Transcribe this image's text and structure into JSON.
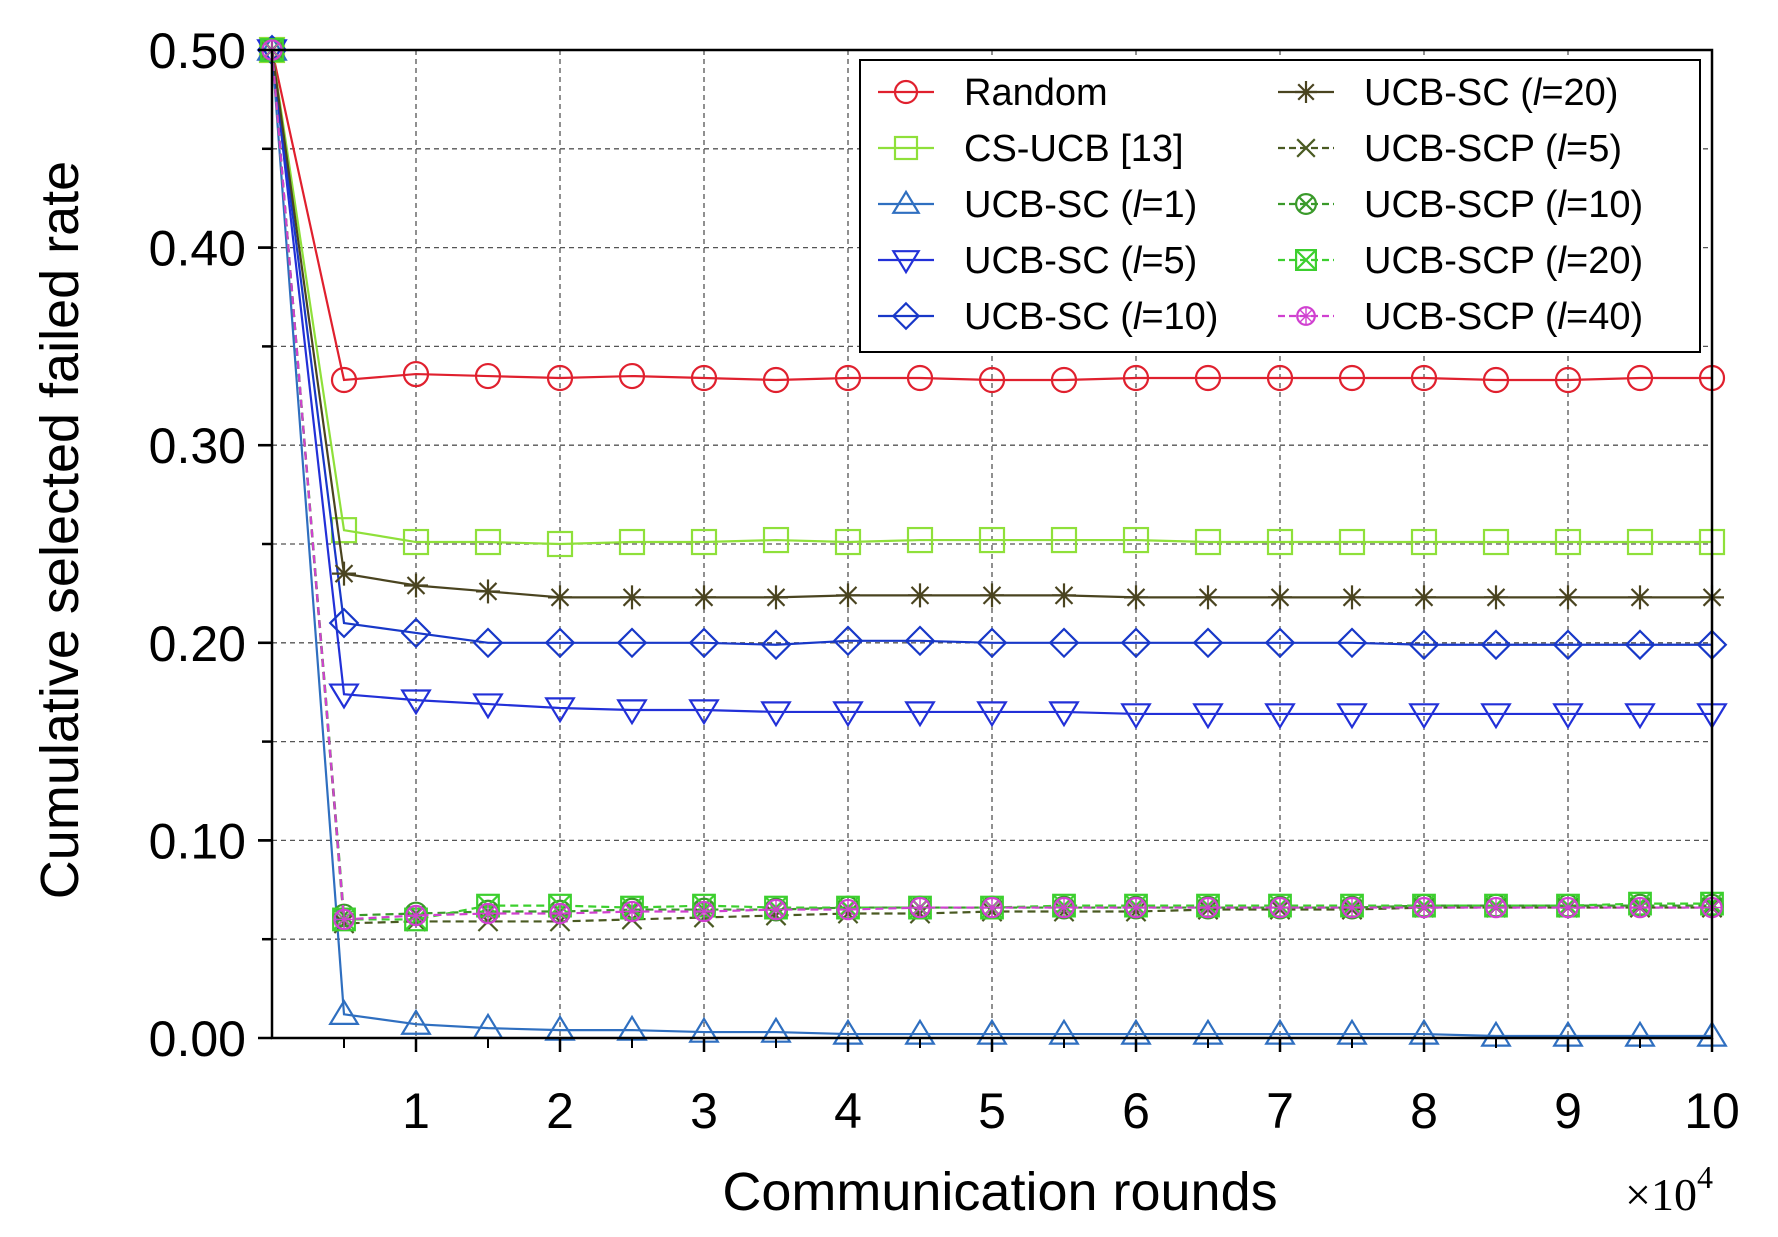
{
  "chart_data": {
    "type": "line",
    "title": "",
    "xlabel": "Communication rounds",
    "ylabel": "Cumulative selected failed rate",
    "x_multiplier_label": "×10",
    "x_multiplier_exp": "4",
    "xlim": [
      0,
      10
    ],
    "ylim": [
      0,
      0.5
    ],
    "xticks": [
      1,
      2,
      3,
      4,
      5,
      6,
      7,
      8,
      9,
      10
    ],
    "xtick_labels": [
      "1",
      "2",
      "3",
      "4",
      "5",
      "6",
      "7",
      "8",
      "9",
      "10"
    ],
    "yticks": [
      0,
      0.1,
      0.2,
      0.3,
      0.4,
      0.5
    ],
    "ytick_labels": [
      "0.00",
      "0.10",
      "0.20",
      "0.30",
      "0.40",
      "0.50"
    ],
    "grid": true,
    "legend_position": "top-right",
    "x": [
      0,
      0.5,
      1,
      1.5,
      2,
      2.5,
      3,
      3.5,
      4,
      4.5,
      5,
      5.5,
      6,
      6.5,
      7,
      7.5,
      8,
      8.5,
      9,
      9.5,
      10
    ],
    "series": [
      {
        "name": "Random",
        "color": "#e0202e",
        "marker": "circle",
        "dash": "solid",
        "values": [
          0.5,
          0.333,
          0.336,
          0.335,
          0.334,
          0.335,
          0.334,
          0.333,
          0.334,
          0.334,
          0.333,
          0.333,
          0.334,
          0.334,
          0.334,
          0.334,
          0.334,
          0.333,
          0.333,
          0.334,
          0.334
        ]
      },
      {
        "name": "CS-UCB [13]",
        "color": "#8fe03a",
        "marker": "square",
        "dash": "solid",
        "values": [
          0.5,
          0.257,
          0.251,
          0.251,
          0.25,
          0.251,
          0.251,
          0.252,
          0.251,
          0.252,
          0.252,
          0.252,
          0.252,
          0.251,
          0.251,
          0.251,
          0.251,
          0.251,
          0.251,
          0.251,
          0.251
        ]
      },
      {
        "name": "UCB-SC (l=1)",
        "label_pre": "UCB-SC (",
        "label_it": "l",
        "label_post": "=1)",
        "color": "#2f6fc0",
        "marker": "triangle-up",
        "dash": "solid",
        "values": [
          0.5,
          0.012,
          0.007,
          0.005,
          0.004,
          0.004,
          0.003,
          0.003,
          0.002,
          0.002,
          0.002,
          0.002,
          0.002,
          0.002,
          0.002,
          0.002,
          0.002,
          0.001,
          0.001,
          0.001,
          0.001
        ]
      },
      {
        "name": "UCB-SC (l=5)",
        "label_pre": "UCB-SC (",
        "label_it": "l",
        "label_post": "=5)",
        "color": "#2230d8",
        "marker": "triangle-down",
        "dash": "solid",
        "values": [
          0.5,
          0.174,
          0.171,
          0.169,
          0.167,
          0.166,
          0.166,
          0.165,
          0.165,
          0.165,
          0.165,
          0.165,
          0.164,
          0.164,
          0.164,
          0.164,
          0.164,
          0.164,
          0.164,
          0.164,
          0.164
        ]
      },
      {
        "name": "UCB-SC (l=10)",
        "label_pre": "UCB-SC (",
        "label_it": "l",
        "label_post": "=10)",
        "color": "#1838c8",
        "marker": "diamond",
        "dash": "solid",
        "values": [
          0.5,
          0.21,
          0.205,
          0.2,
          0.2,
          0.2,
          0.2,
          0.199,
          0.201,
          0.201,
          0.2,
          0.2,
          0.2,
          0.2,
          0.2,
          0.2,
          0.199,
          0.199,
          0.199,
          0.199,
          0.199
        ]
      },
      {
        "name": "UCB-SC (l=20)",
        "label_pre": "UCB-SC (",
        "label_it": "l",
        "label_post": "=20)",
        "color": "#4a4420",
        "marker": "asterisk",
        "dash": "solid",
        "values": [
          0.5,
          0.235,
          0.229,
          0.226,
          0.223,
          0.223,
          0.223,
          0.223,
          0.224,
          0.224,
          0.224,
          0.224,
          0.223,
          0.223,
          0.223,
          0.223,
          0.223,
          0.223,
          0.223,
          0.223,
          0.223
        ]
      },
      {
        "name": "UCB-SCP (l=5)",
        "label_pre": "UCB-SCP (",
        "label_it": "l",
        "label_post": "=5)",
        "color": "#4a5a22",
        "marker": "x",
        "dash": "dashed",
        "values": [
          0.5,
          0.058,
          0.059,
          0.059,
          0.059,
          0.06,
          0.061,
          0.062,
          0.063,
          0.063,
          0.064,
          0.064,
          0.064,
          0.065,
          0.065,
          0.065,
          0.066,
          0.066,
          0.066,
          0.066,
          0.066
        ]
      },
      {
        "name": "UCB-SCP (l=10)",
        "label_pre": "UCB-SCP (",
        "label_it": "l",
        "label_post": "=10)",
        "color": "#3a9a2a",
        "marker": "circle-x",
        "dash": "dashed",
        "values": [
          0.5,
          0.062,
          0.063,
          0.064,
          0.064,
          0.065,
          0.065,
          0.065,
          0.066,
          0.066,
          0.066,
          0.066,
          0.066,
          0.066,
          0.066,
          0.066,
          0.067,
          0.067,
          0.067,
          0.067,
          0.067
        ]
      },
      {
        "name": "UCB-SCP (l=20)",
        "label_pre": "UCB-SCP (",
        "label_it": "l",
        "label_post": "=20)",
        "color": "#3ccf2e",
        "marker": "square-x",
        "dash": "dashed",
        "values": [
          0.5,
          0.06,
          0.06,
          0.067,
          0.067,
          0.066,
          0.067,
          0.066,
          0.066,
          0.066,
          0.066,
          0.067,
          0.067,
          0.067,
          0.067,
          0.067,
          0.067,
          0.067,
          0.067,
          0.068,
          0.068
        ]
      },
      {
        "name": "UCB-SCP (l=40)",
        "label_pre": "UCB-SCP (",
        "label_it": "l",
        "label_post": "=40)",
        "color": "#d040d0",
        "marker": "circle-star",
        "dash": "dashed",
        "values": [
          0.5,
          0.06,
          0.062,
          0.063,
          0.063,
          0.064,
          0.064,
          0.065,
          0.065,
          0.066,
          0.066,
          0.066,
          0.066,
          0.066,
          0.066,
          0.066,
          0.066,
          0.066,
          0.066,
          0.066,
          0.066
        ]
      }
    ]
  }
}
